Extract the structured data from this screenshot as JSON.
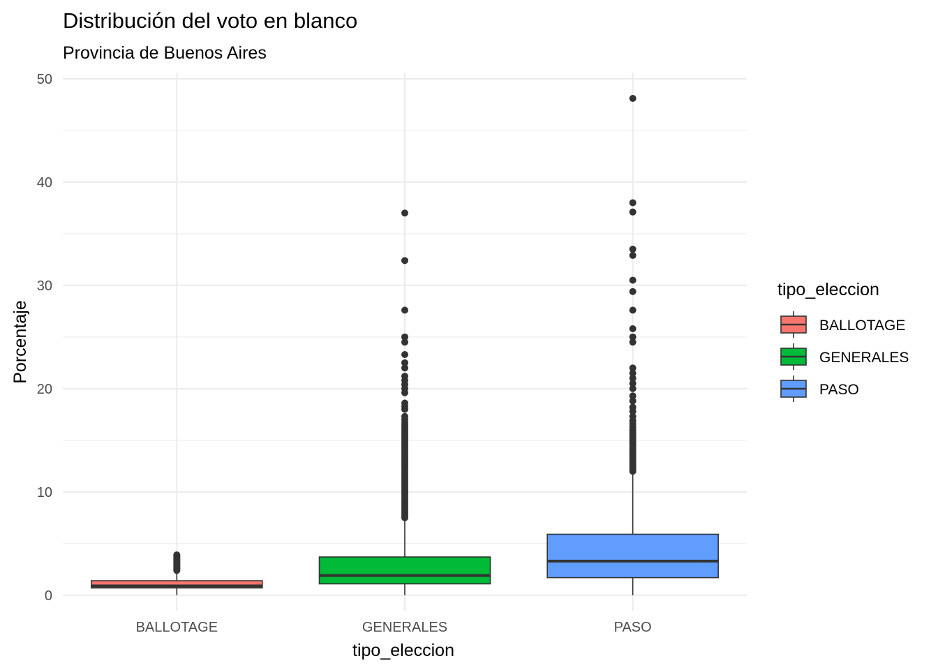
{
  "chart_data": {
    "type": "boxplot",
    "title": "Distribución del voto en blanco",
    "subtitle": "Provincia de Buenos Aires",
    "xlabel": "tipo_eleccion",
    "ylabel": "Porcentaje",
    "ylim": [
      -1.5,
      50.6
    ],
    "yticks": [
      0,
      10,
      20,
      30,
      40,
      50
    ],
    "grid": true,
    "legend": {
      "title": "tipo_eleccion",
      "position": "right",
      "entries": [
        "BALLOTAGE",
        "GENERALES",
        "PASO"
      ]
    },
    "categories": [
      "BALLOTAGE",
      "GENERALES",
      "PASO"
    ],
    "boxes": [
      {
        "category": "BALLOTAGE",
        "color": "#F8766D",
        "min": 0.0,
        "q1": 0.7,
        "median": 0.9,
        "q3": 1.4,
        "max": 2.3,
        "outliers": [
          2.4,
          2.5,
          2.6,
          2.7,
          2.8,
          2.9,
          3.0,
          3.1,
          3.2,
          3.3,
          3.4,
          3.5,
          3.6,
          3.7,
          3.8,
          3.9
        ]
      },
      {
        "category": "GENERALES",
        "color": "#00BA38",
        "min": 0.0,
        "q1": 1.1,
        "median": 1.9,
        "q3": 3.7,
        "max": 7.4,
        "outliers": [
          7.5,
          7.7,
          7.9,
          8.1,
          8.3,
          8.5,
          8.7,
          8.9,
          9.1,
          9.3,
          9.5,
          9.7,
          9.9,
          10.1,
          10.3,
          10.5,
          10.7,
          10.9,
          11.1,
          11.3,
          11.5,
          11.7,
          11.9,
          12.1,
          12.3,
          12.5,
          12.7,
          12.9,
          13.1,
          13.3,
          13.5,
          13.7,
          13.9,
          14.1,
          14.3,
          14.5,
          14.7,
          14.9,
          15.1,
          15.3,
          15.5,
          15.7,
          15.9,
          16.1,
          16.3,
          16.5,
          16.7,
          17.0,
          17.3,
          18.0,
          18.3,
          18.6,
          19.6,
          20.0,
          20.4,
          20.8,
          21.2,
          22.0,
          22.5,
          23.3,
          24.5,
          25.0,
          27.6,
          32.4,
          37.0
        ]
      },
      {
        "category": "PASO",
        "color": "#619CFF",
        "min": 0.0,
        "q1": 1.7,
        "median": 3.3,
        "q3": 5.9,
        "max": 11.9,
        "outliers": [
          12.0,
          12.2,
          12.4,
          12.6,
          12.8,
          13.0,
          13.2,
          13.4,
          13.6,
          13.8,
          14.0,
          14.2,
          14.4,
          14.6,
          14.8,
          15.0,
          15.2,
          15.4,
          15.6,
          15.8,
          16.0,
          16.3,
          16.6,
          16.9,
          17.3,
          17.8,
          18.2,
          18.8,
          19.3,
          20.0,
          20.5,
          21.0,
          21.5,
          22.0,
          24.5,
          25.0,
          25.8,
          27.6,
          29.4,
          30.5,
          32.9,
          33.5,
          37.1,
          38.0,
          48.1
        ]
      }
    ]
  }
}
